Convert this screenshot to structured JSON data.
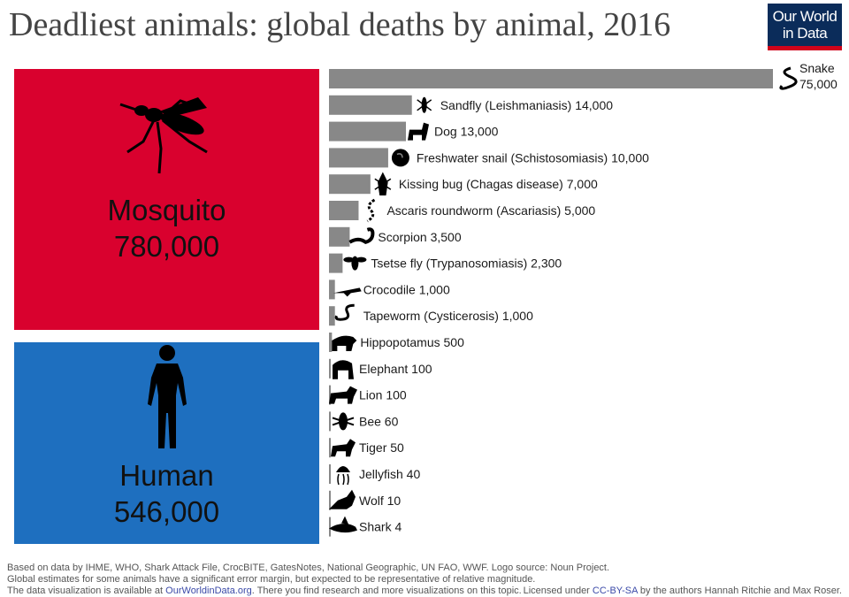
{
  "title": "Deadliest animals: global deaths by animal, 2016",
  "logo": {
    "line1": "Our World",
    "line2": "in Data"
  },
  "colors": {
    "mosquito": "#d9012e",
    "human": "#1e6fbf",
    "bar": "#888888",
    "logo_bg": "#0b2c5a",
    "logo_accent": "#d0021b"
  },
  "mosquito": {
    "name": "Mosquito",
    "value": "780,000",
    "icon": "mosquito-icon"
  },
  "human": {
    "name": "Human",
    "value": "546,000",
    "icon": "human-figure-icon"
  },
  "chart_data": {
    "type": "bar",
    "orientation": "horizontal",
    "title": "Deadliest animals: global deaths by animal, 2016",
    "highlighted": [
      {
        "name": "Mosquito",
        "value": 780000,
        "label": "780,000"
      },
      {
        "name": "Human",
        "value": 546000,
        "label": "546,000"
      }
    ],
    "categories": [
      "Snake",
      "Sandfly (Leishmaniasis)",
      "Dog",
      "Freshwater snail (Schistosomiasis)",
      "Kissing bug (Chagas disease)",
      "Ascaris roundworm (Ascariasis)",
      "Scorpion",
      "Tsetse fly (Trypanosomiasis)",
      "Crocodile",
      "Tapeworm (Cysticerosis)",
      "Hippopotamus",
      "Elephant",
      "Lion",
      "Bee",
      "Tiger",
      "Jellyfish",
      "Wolf",
      "Shark"
    ],
    "values": [
      75000,
      14000,
      13000,
      10000,
      7000,
      5000,
      3500,
      2300,
      1000,
      1000,
      500,
      100,
      100,
      60,
      50,
      40,
      10,
      4
    ],
    "value_labels": [
      "75,000",
      "14,000",
      "13,000",
      "10,000",
      "7,000",
      "5,000",
      "3,500",
      "2,300",
      "1,000",
      "1,000",
      "500",
      "100",
      "100",
      "60",
      "50",
      "40",
      "10",
      "4"
    ],
    "icons": [
      "snake-icon",
      "sandfly-icon",
      "dog-icon",
      "snail-icon",
      "kissing-bug-icon",
      "roundworm-icon",
      "scorpion-icon",
      "tsetse-fly-icon",
      "crocodile-icon",
      "tapeworm-icon",
      "hippopotamus-icon",
      "elephant-icon",
      "lion-icon",
      "bee-icon",
      "tiger-icon",
      "jellyfish-icon",
      "wolf-icon",
      "shark-icon"
    ],
    "xlim": [
      0,
      75000
    ],
    "grid": false,
    "legend": "none"
  },
  "footer": {
    "line1": "Based on data by IHME, WHO, Shark Attack File, CrocBITE, GatesNotes, National Geographic, UN FAO, WWF. Logo source: Noun Project.",
    "line2": "Global estimates for some animals have a significant error margin, but expected to be representative of relative magnitude.",
    "line3_pre": "The data visualization is available at ",
    "line3_link": "OurWorldinData.org",
    "line3_post": ". There you find research and more visualizations on this topic.",
    "license_pre": "Licensed under ",
    "license_link": "CC-BY-SA",
    "license_post": " by the authors Hannah Ritchie and Max Roser."
  }
}
